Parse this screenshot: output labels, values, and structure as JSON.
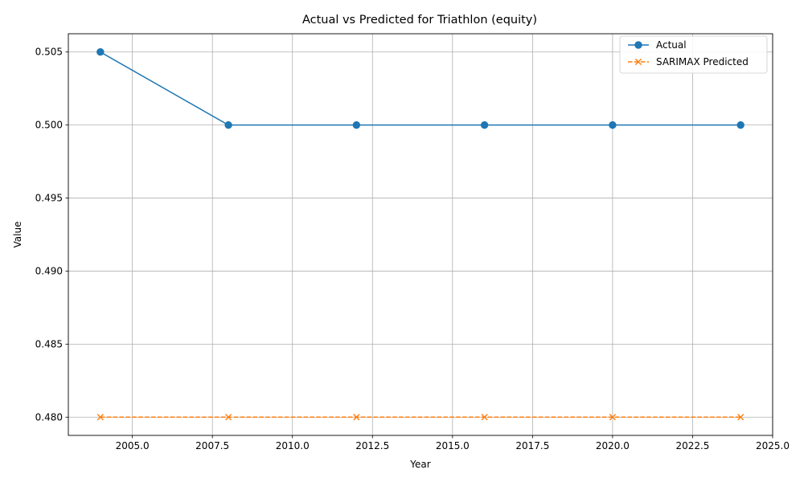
{
  "chart_data": {
    "type": "line",
    "title": "Actual vs Predicted for Triathlon (equity)",
    "xlabel": "Year",
    "ylabel": "Value",
    "x": [
      2004,
      2008,
      2012,
      2016,
      2020,
      2024
    ],
    "series": [
      {
        "name": "Actual",
        "values": [
          0.505,
          0.5,
          0.5,
          0.5,
          0.5,
          0.5
        ],
        "color": "#1f77b4",
        "marker": "circle",
        "linestyle": "solid"
      },
      {
        "name": "SARIMAX Predicted",
        "values": [
          0.48,
          0.48,
          0.48,
          0.48,
          0.48,
          0.48
        ],
        "color": "#ff7f0e",
        "marker": "x",
        "linestyle": "dashed"
      }
    ],
    "xlim": [
      2003,
      2025
    ],
    "ylim": [
      0.47875,
      0.50625
    ],
    "xticks": [
      2005,
      2007.5,
      2010,
      2012.5,
      2015,
      2017.5,
      2020,
      2022.5,
      2025
    ],
    "xtick_labels": [
      "2005.0",
      "2007.5",
      "2010.0",
      "2012.5",
      "2015.0",
      "2017.5",
      "2020.0",
      "2022.5",
      "2025.0"
    ],
    "yticks": [
      0.48,
      0.485,
      0.49,
      0.495,
      0.5,
      0.505
    ],
    "ytick_labels": [
      "0.480",
      "0.485",
      "0.490",
      "0.495",
      "0.500",
      "0.505"
    ],
    "grid": true,
    "legend": "top-right"
  }
}
